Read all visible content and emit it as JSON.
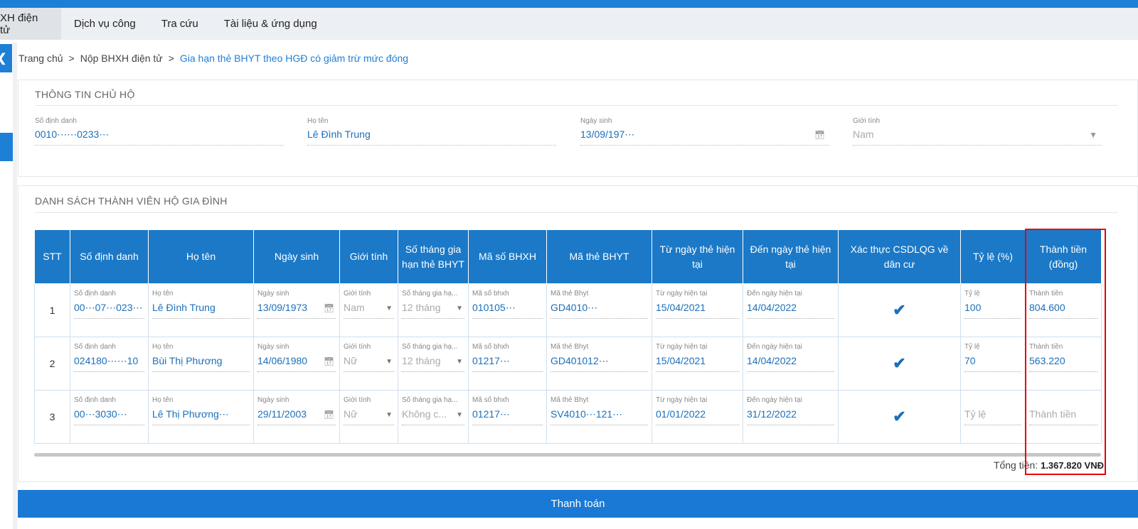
{
  "nav": {
    "items": [
      "XH điện tử",
      "Dịch vụ công",
      "Tra cứu",
      "Tài liệu & ứng dụng"
    ]
  },
  "breadcrumb": {
    "home": "Trang chủ",
    "sep": ">",
    "section": "Nộp BHXH điện tử",
    "current": "Gia hạn thẻ BHYT theo HGĐ có giảm trừ mức đóng"
  },
  "household": {
    "title": "THÔNG TIN CHỦ HỘ",
    "id_label": "Số định danh",
    "id_value": "0010⋯⋯0233⋯",
    "name_label": "Họ tên",
    "name_value": "Lê Đình Trung",
    "dob_label": "Ngày sinh",
    "dob_value": "13/09/197⋯",
    "gender_label": "Giới tính",
    "gender_value": "Nam"
  },
  "members": {
    "title": "DANH SÁCH THÀNH VIÊN HỘ GIA ĐÌNH",
    "headers": [
      "STT",
      "Số định danh",
      "Họ tên",
      "Ngày sinh",
      "Giới tính",
      "Số tháng gia hạn thẻ BHYT",
      "Mã số BHXH",
      "Mã thẻ BHYT",
      "Từ ngày thẻ hiện tại",
      "Đến ngày thẻ hiện tại",
      "Xác thực CSDLQG về dân cư",
      "Tỷ lệ (%)",
      "Thành tiền (đồng)"
    ],
    "cell_labels": [
      "Số định danh",
      "Họ tên",
      "Ngày sinh",
      "Giới tính",
      "Số tháng gia hạ...",
      "Mã số bhxh",
      "Mã thẻ Bhyt",
      "Từ ngày hiện tại",
      "Đến ngày hiện tại",
      "Tỷ lệ",
      "Thành tiền"
    ],
    "rows": [
      {
        "stt": "1",
        "id": "00⋯07⋯023⋯",
        "name": "Lê Đình Trung",
        "dob": "13/09/1973",
        "gender": "Nam",
        "months": "12 tháng",
        "bhxh": "010105⋯",
        "bhyt": "GD4010⋯",
        "from": "15/04/2021",
        "to": "14/04/2022",
        "verified": "✔",
        "rate": "100",
        "amount": "804.600"
      },
      {
        "stt": "2",
        "id": "024180⋯⋯10",
        "name": "Bùi Thị Phương",
        "dob": "14/06/1980",
        "gender": "Nữ",
        "months": "12 tháng",
        "bhxh": "01217⋯",
        "bhyt": "GD401012⋯",
        "from": "15/04/2021",
        "to": "14/04/2022",
        "verified": "✔",
        "rate": "70",
        "amount": "563.220"
      },
      {
        "stt": "3",
        "id": "00⋯3030⋯",
        "name": "Lê Thị Phương⋯",
        "dob": "29/11/2003",
        "gender": "Nữ",
        "months": "Không c...",
        "bhxh": "01217⋯",
        "bhyt": "SV4010⋯121⋯",
        "from": "01/01/2022",
        "to": "31/12/2022",
        "verified": "✔",
        "rate": "Tỷ lệ",
        "amount": "Thành tiền"
      }
    ]
  },
  "total": {
    "label": "Tổng tiền:",
    "value": "1.367.820 VNĐ"
  },
  "pay_button": "Thanh toán",
  "icons": {
    "calendar": "calendar-icon",
    "dropdown": "chevron-down-icon",
    "check": "check-icon"
  },
  "colors": {
    "primary": "#1e7fd6",
    "table_header": "#1b79c7",
    "highlight": "#e8000b"
  }
}
